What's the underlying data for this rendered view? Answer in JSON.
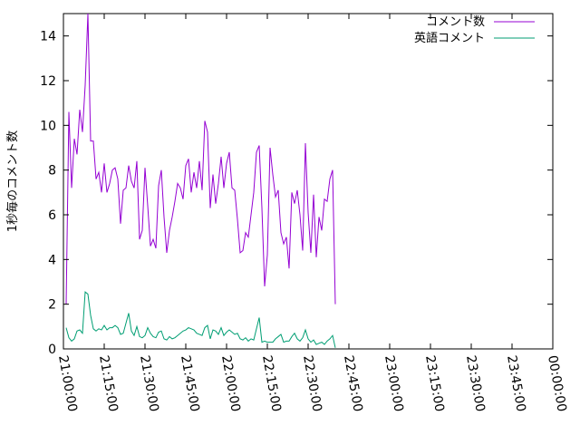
{
  "chart_data": {
    "type": "line",
    "title": "",
    "xlabel": "",
    "ylabel": "1秒毎のコメント数",
    "ylim": [
      0,
      15
    ],
    "xlim": [
      "21:00:00",
      "00:00:00"
    ],
    "y_ticks": [
      0,
      2,
      4,
      6,
      8,
      10,
      12,
      14
    ],
    "x_ticks": [
      "21:00:00",
      "21:15:00",
      "21:30:00",
      "21:45:00",
      "22:00:00",
      "22:15:00",
      "22:30:00",
      "22:45:00",
      "23:00:00",
      "23:15:00",
      "23:30:00",
      "23:45:00",
      "00:00:00"
    ],
    "grid": false,
    "legend_position": "top-right",
    "series": [
      {
        "name": "コメント数",
        "color": "#9400d3",
        "points": [
          [
            "21:01:00",
            2.0
          ],
          [
            "21:02:00",
            10.6
          ],
          [
            "21:03:00",
            7.2
          ],
          [
            "21:04:00",
            9.4
          ],
          [
            "21:05:00",
            8.7
          ],
          [
            "21:06:00",
            10.7
          ],
          [
            "21:07:00",
            9.7
          ],
          [
            "21:08:00",
            11.8
          ],
          [
            "21:09:00",
            15.0
          ],
          [
            "21:10:00",
            9.3
          ],
          [
            "21:11:00",
            9.3
          ],
          [
            "21:12:00",
            7.6
          ],
          [
            "21:13:00",
            7.9
          ],
          [
            "21:14:00",
            7.0
          ],
          [
            "21:15:00",
            8.3
          ],
          [
            "21:16:00",
            7.0
          ],
          [
            "21:17:00",
            7.4
          ],
          [
            "21:18:00",
            8.0
          ],
          [
            "21:19:00",
            8.1
          ],
          [
            "21:20:00",
            7.6
          ],
          [
            "21:21:00",
            5.6
          ],
          [
            "21:22:00",
            7.1
          ],
          [
            "21:23:00",
            7.2
          ],
          [
            "21:24:00",
            8.2
          ],
          [
            "21:25:00",
            7.5
          ],
          [
            "21:26:00",
            7.2
          ],
          [
            "21:27:00",
            8.4
          ],
          [
            "21:28:00",
            4.9
          ],
          [
            "21:29:00",
            5.3
          ],
          [
            "21:30:00",
            8.1
          ],
          [
            "21:31:00",
            6.4
          ],
          [
            "21:32:00",
            4.6
          ],
          [
            "21:33:00",
            4.9
          ],
          [
            "21:34:00",
            4.5
          ],
          [
            "21:35:00",
            7.3
          ],
          [
            "21:36:00",
            8.0
          ],
          [
            "21:37:00",
            5.9
          ],
          [
            "21:38:00",
            4.3
          ],
          [
            "21:39:00",
            5.3
          ],
          [
            "21:40:00",
            5.9
          ],
          [
            "21:41:00",
            6.6
          ],
          [
            "21:42:00",
            7.4
          ],
          [
            "21:43:00",
            7.2
          ],
          [
            "21:44:00",
            6.7
          ],
          [
            "21:45:00",
            8.2
          ],
          [
            "21:46:00",
            8.5
          ],
          [
            "21:47:00",
            7.0
          ],
          [
            "21:48:00",
            7.9
          ],
          [
            "21:49:00",
            7.2
          ],
          [
            "21:50:00",
            8.4
          ],
          [
            "21:51:00",
            7.1
          ],
          [
            "21:52:00",
            10.2
          ],
          [
            "21:53:00",
            9.7
          ],
          [
            "21:54:00",
            6.3
          ],
          [
            "21:55:00",
            7.8
          ],
          [
            "21:56:00",
            6.5
          ],
          [
            "21:57:00",
            7.4
          ],
          [
            "21:58:00",
            8.6
          ],
          [
            "21:59:00",
            7.2
          ],
          [
            "22:00:00",
            8.3
          ],
          [
            "22:01:00",
            8.8
          ],
          [
            "22:02:00",
            7.2
          ],
          [
            "22:03:00",
            7.1
          ],
          [
            "22:04:00",
            5.8
          ],
          [
            "22:05:00",
            4.3
          ],
          [
            "22:06:00",
            4.4
          ],
          [
            "22:07:00",
            5.2
          ],
          [
            "22:08:00",
            5.0
          ],
          [
            "22:09:00",
            6.0
          ],
          [
            "22:10:00",
            7.0
          ],
          [
            "22:11:00",
            8.8
          ],
          [
            "22:12:00",
            9.1
          ],
          [
            "22:13:00",
            6.3
          ],
          [
            "22:14:00",
            2.8
          ],
          [
            "22:15:00",
            4.2
          ],
          [
            "22:16:00",
            9.0
          ],
          [
            "22:17:00",
            7.8
          ],
          [
            "22:18:00",
            6.8
          ],
          [
            "22:19:00",
            7.1
          ],
          [
            "22:20:00",
            5.2
          ],
          [
            "22:21:00",
            4.7
          ],
          [
            "22:22:00",
            5.0
          ],
          [
            "22:23:00",
            3.6
          ],
          [
            "22:24:00",
            7.0
          ],
          [
            "22:25:00",
            6.5
          ],
          [
            "22:26:00",
            7.1
          ],
          [
            "22:27:00",
            6.0
          ],
          [
            "22:28:00",
            4.4
          ],
          [
            "22:29:00",
            9.2
          ],
          [
            "22:30:00",
            6.1
          ],
          [
            "22:31:00",
            4.3
          ],
          [
            "22:32:00",
            6.9
          ],
          [
            "22:33:00",
            4.1
          ],
          [
            "22:34:00",
            5.9
          ],
          [
            "22:35:00",
            5.3
          ],
          [
            "22:36:00",
            6.7
          ],
          [
            "22:37:00",
            6.6
          ],
          [
            "22:38:00",
            7.6
          ],
          [
            "22:39:00",
            8.0
          ],
          [
            "22:40:00",
            2.0
          ]
        ]
      },
      {
        "name": "英語コメント",
        "color": "#009e73",
        "points": [
          [
            "21:01:00",
            0.95
          ],
          [
            "21:02:00",
            0.5
          ],
          [
            "21:03:00",
            0.35
          ],
          [
            "21:04:00",
            0.45
          ],
          [
            "21:05:00",
            0.8
          ],
          [
            "21:06:00",
            0.85
          ],
          [
            "21:07:00",
            0.7
          ],
          [
            "21:08:00",
            2.55
          ],
          [
            "21:09:00",
            2.45
          ],
          [
            "21:10:00",
            1.5
          ],
          [
            "21:11:00",
            0.9
          ],
          [
            "21:12:00",
            0.8
          ],
          [
            "21:13:00",
            0.9
          ],
          [
            "21:14:00",
            0.85
          ],
          [
            "21:15:00",
            1.05
          ],
          [
            "21:16:00",
            0.85
          ],
          [
            "21:17:00",
            0.95
          ],
          [
            "21:18:00",
            0.95
          ],
          [
            "21:19:00",
            1.05
          ],
          [
            "21:20:00",
            0.95
          ],
          [
            "21:21:00",
            0.65
          ],
          [
            "21:22:00",
            0.7
          ],
          [
            "21:23:00",
            1.15
          ],
          [
            "21:24:00",
            1.6
          ],
          [
            "21:25:00",
            0.8
          ],
          [
            "21:26:00",
            0.6
          ],
          [
            "21:27:00",
            1.0
          ],
          [
            "21:28:00",
            0.55
          ],
          [
            "21:29:00",
            0.5
          ],
          [
            "21:30:00",
            0.6
          ],
          [
            "21:31:00",
            0.95
          ],
          [
            "21:32:00",
            0.7
          ],
          [
            "21:33:00",
            0.55
          ],
          [
            "21:34:00",
            0.5
          ],
          [
            "21:35:00",
            0.75
          ],
          [
            "21:36:00",
            0.8
          ],
          [
            "21:37:00",
            0.45
          ],
          [
            "21:38:00",
            0.4
          ],
          [
            "21:39:00",
            0.55
          ],
          [
            "21:40:00",
            0.45
          ],
          [
            "21:41:00",
            0.5
          ],
          [
            "21:42:00",
            0.6
          ],
          [
            "21:43:00",
            0.7
          ],
          [
            "21:44:00",
            0.8
          ],
          [
            "21:45:00",
            0.85
          ],
          [
            "21:46:00",
            0.95
          ],
          [
            "21:47:00",
            0.9
          ],
          [
            "21:48:00",
            0.85
          ],
          [
            "21:49:00",
            0.7
          ],
          [
            "21:50:00",
            0.65
          ],
          [
            "21:51:00",
            0.6
          ],
          [
            "21:52:00",
            0.95
          ],
          [
            "21:53:00",
            1.05
          ],
          [
            "21:54:00",
            0.45
          ],
          [
            "21:55:00",
            0.85
          ],
          [
            "21:56:00",
            0.8
          ],
          [
            "21:57:00",
            0.65
          ],
          [
            "21:58:00",
            0.95
          ],
          [
            "21:59:00",
            0.6
          ],
          [
            "22:00:00",
            0.75
          ],
          [
            "22:01:00",
            0.85
          ],
          [
            "22:02:00",
            0.75
          ],
          [
            "22:03:00",
            0.65
          ],
          [
            "22:04:00",
            0.7
          ],
          [
            "22:05:00",
            0.45
          ],
          [
            "22:06:00",
            0.4
          ],
          [
            "22:07:00",
            0.5
          ],
          [
            "22:08:00",
            0.35
          ],
          [
            "22:09:00",
            0.45
          ],
          [
            "22:10:00",
            0.4
          ],
          [
            "22:11:00",
            0.9
          ],
          [
            "22:12:00",
            1.4
          ],
          [
            "22:13:00",
            0.3
          ],
          [
            "22:14:00",
            0.35
          ],
          [
            "22:15:00",
            0.3
          ],
          [
            "22:16:00",
            0.3
          ],
          [
            "22:17:00",
            0.3
          ],
          [
            "22:18:00",
            0.45
          ],
          [
            "22:19:00",
            0.55
          ],
          [
            "22:20:00",
            0.65
          ],
          [
            "22:21:00",
            0.3
          ],
          [
            "22:22:00",
            0.35
          ],
          [
            "22:23:00",
            0.35
          ],
          [
            "22:24:00",
            0.55
          ],
          [
            "22:25:00",
            0.7
          ],
          [
            "22:26:00",
            0.45
          ],
          [
            "22:27:00",
            0.35
          ],
          [
            "22:28:00",
            0.5
          ],
          [
            "22:29:00",
            0.85
          ],
          [
            "22:30:00",
            0.45
          ],
          [
            "22:31:00",
            0.3
          ],
          [
            "22:32:00",
            0.4
          ],
          [
            "22:33:00",
            0.2
          ],
          [
            "22:34:00",
            0.25
          ],
          [
            "22:35:00",
            0.3
          ],
          [
            "22:36:00",
            0.2
          ],
          [
            "22:37:00",
            0.35
          ],
          [
            "22:38:00",
            0.45
          ],
          [
            "22:39:00",
            0.6
          ],
          [
            "22:40:00",
            0.05
          ]
        ]
      }
    ]
  }
}
